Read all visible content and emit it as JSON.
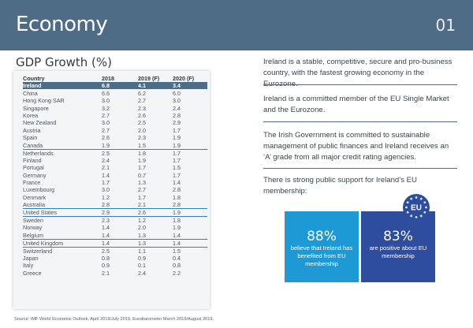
{
  "header": {
    "title": "Economy",
    "page_number": "01"
  },
  "gdp": {
    "title": "GDP Growth (%)",
    "columns": [
      "Country",
      "2018",
      "2019 (F)",
      "2020 (F)"
    ],
    "rows": [
      [
        "Ireland",
        "6.8",
        "4.1",
        "3.4"
      ],
      [
        "China",
        "6.6",
        "6.2",
        "6.0"
      ],
      [
        "Hong Kong SAR",
        "3.0",
        "2.7",
        "3.0"
      ],
      [
        "Singapore",
        "3.2",
        "2.3",
        "2.4"
      ],
      [
        "Korea",
        "2.7",
        "2.6",
        "2.8"
      ],
      [
        "New Zealand",
        "3.0",
        "2.5",
        "2.9"
      ],
      [
        "Austria",
        "2.7",
        "2.0",
        "1.7"
      ],
      [
        "Spain",
        "2.6",
        "2.3",
        "1.9"
      ],
      [
        "Canada",
        "1.9",
        "1.5",
        "1.9"
      ],
      [
        "Netherlands",
        "2.5",
        "1.8",
        "1.7"
      ],
      [
        "Finland",
        "2.4",
        "1.9",
        "1.7"
      ],
      [
        "Portugal",
        "2.1",
        "1.7",
        "1.5"
      ],
      [
        "Germany",
        "1.4",
        "0.7",
        "1.7"
      ],
      [
        "France",
        "1.7",
        "1.3",
        "1.4"
      ],
      [
        "Luxembourg",
        "3.0",
        "2.7",
        "2.8"
      ],
      [
        "Denmark",
        "1.2",
        "1.7",
        "1.8"
      ],
      [
        "Australia",
        "2.8",
        "2.1",
        "2.8"
      ],
      [
        "United States",
        "2.9",
        "2.6",
        "1.9"
      ],
      [
        "Sweden",
        "2.3",
        "1.2",
        "1.8"
      ],
      [
        "Norway",
        "1.4",
        "2.0",
        "1.9"
      ],
      [
        "Belgium",
        "1.4",
        "1.3",
        "1.4"
      ],
      [
        "United Kingdom",
        "1.4",
        "1.3",
        "1.4"
      ],
      [
        "Switzerland",
        "2.5",
        "1.1",
        "1.5"
      ],
      [
        "Japan",
        "0.8",
        "0.9",
        "0.4"
      ],
      [
        "Italy",
        "0.9",
        "0.1",
        "0.8"
      ],
      [
        "Greece",
        "2.1",
        "2.4",
        "2.2"
      ]
    ]
  },
  "statements": [
    "Ireland is a stable, competitive, secure and pro-business country, with the fastest growing economy in the Eurozone.",
    "Ireland is a committed member of the EU Single Market and the Eurozone.",
    "The Irish Government is committed to sustainable management of public finances and Ireland receives an ‘A’ grade from all major credit rating agencies.",
    "There is strong public support for Ireland’s EU membership:"
  ],
  "cards": [
    {
      "percent": "88%",
      "text": "believe that Ireland has benefited from EU membership"
    },
    {
      "percent": "83%",
      "text": "are positive about EU membership"
    }
  ],
  "eu_badge": "EU",
  "source": "Source: IMF World Economic Outlook, April 2019/July 2019, Eurobarometer March 2019/August 2019.",
  "colors": {
    "header": "#4f6c86",
    "card1": "#1d9ad6",
    "card2": "#2f4d9e",
    "accent_line": "#2f7fc4"
  }
}
